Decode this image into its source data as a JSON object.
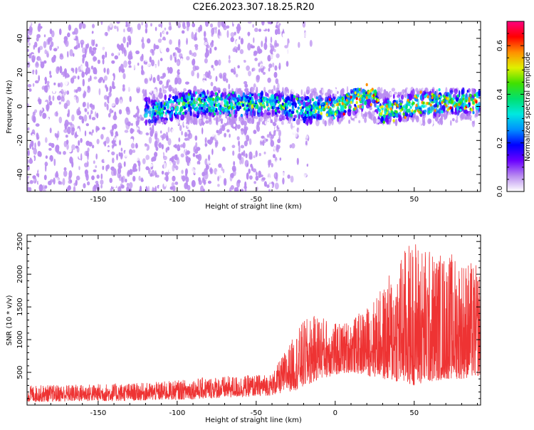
{
  "title": "C2E6.2023.307.18.25.R20",
  "chart_data": [
    {
      "type": "heatmap",
      "xlabel": "Height of straight line (km)",
      "ylabel": "Frequency (Hz)",
      "xlim": [
        -195,
        92
      ],
      "ylim": [
        -50,
        50
      ],
      "xticks": [
        -150,
        -100,
        -50,
        0,
        50
      ],
      "yticks": [
        -40,
        -20,
        0,
        20,
        40
      ],
      "grid": false,
      "colorbar": {
        "label": "Normalized spectral amplitude",
        "lim": [
          0,
          0.7
        ],
        "ticks": [
          0.0,
          0.2,
          0.4,
          0.6
        ],
        "colors": [
          "#ffffff",
          "#b98cf0",
          "#6a00ff",
          "#0000ff",
          "#0090ff",
          "#00e8e0",
          "#00e070",
          "#40e000",
          "#e0f000",
          "#ff9000",
          "#ff0000",
          "#ff0080"
        ]
      },
      "regions": [
        {
          "x": [
            -195,
            -35
          ],
          "freq": [
            -50,
            50
          ],
          "amplitude": 0.05
        },
        {
          "x": [
            -35,
            -15
          ],
          "freq": [
            -50,
            50
          ],
          "amplitude": 0.02
        },
        {
          "x": [
            -120,
            92
          ],
          "freq": [
            -10,
            10
          ],
          "amplitude": 0.25
        }
      ],
      "ridge": {
        "x": [
          -115,
          -90,
          -60,
          -40,
          -20,
          0,
          10,
          20,
          25,
          28,
          35,
          50,
          70,
          90
        ],
        "freq": [
          -3,
          2,
          1,
          2,
          -2,
          -1,
          3,
          6,
          8,
          -3,
          -2,
          1,
          2,
          3
        ]
      }
    },
    {
      "type": "line",
      "xlabel": "Height of straight line (km)",
      "ylabel": "SNR (10 * v/v)",
      "xlim": [
        -195,
        92
      ],
      "ylim": [
        0,
        2600
      ],
      "xticks": [
        -150,
        -100,
        -50,
        0,
        50
      ],
      "yticks": [
        500,
        1000,
        1500,
        2000,
        2500
      ],
      "grid": false,
      "series": [
        {
          "color": "#ee3333",
          "x": [
            -195,
            -180,
            -160,
            -140,
            -120,
            -100,
            -80,
            -60,
            -40,
            -30,
            -20,
            -10,
            0,
            10,
            20,
            30,
            40,
            50,
            60,
            70,
            80,
            92
          ],
          "y_min": [
            50,
            50,
            60,
            60,
            70,
            80,
            100,
            120,
            150,
            200,
            250,
            400,
            450,
            500,
            450,
            400,
            350,
            300,
            350,
            400,
            400,
            450
          ],
          "y_max": [
            300,
            310,
            320,
            330,
            340,
            380,
            430,
            450,
            480,
            900,
            1300,
            1400,
            1250,
            1300,
            1500,
            1800,
            2300,
            2600,
            2400,
            2350,
            2300,
            2100
          ]
        }
      ]
    }
  ]
}
